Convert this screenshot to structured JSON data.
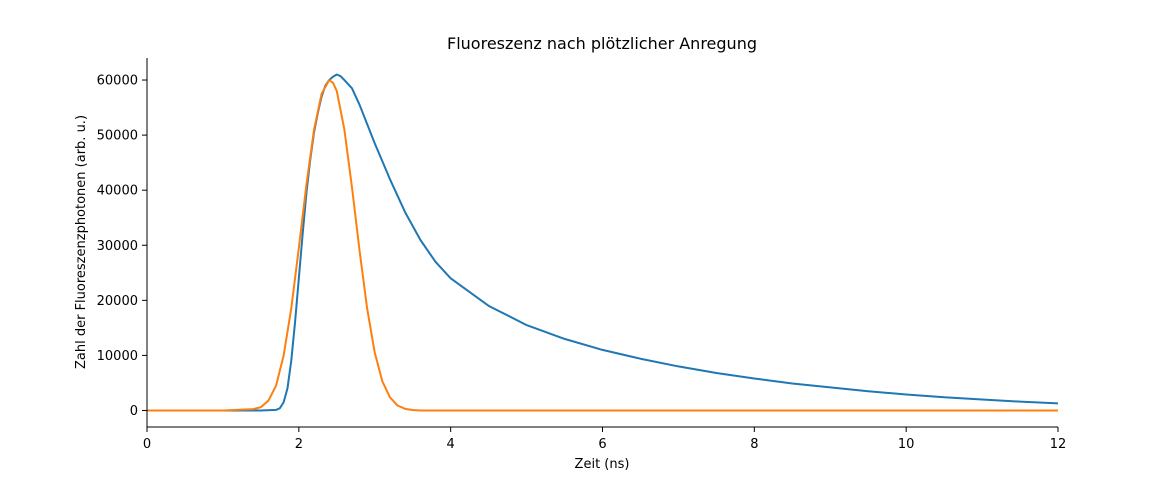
{
  "chart_data": {
    "type": "line",
    "title": "Fluoreszenz nach plötzlicher Anregung",
    "xlabel": "Zeit (ns)",
    "ylabel": "Zahl der Fluoreszenzphotonen (arb. u.)",
    "xlim": [
      0,
      12
    ],
    "ylim": [
      -3000,
      64000
    ],
    "xticks": [
      0,
      2,
      4,
      6,
      8,
      10,
      12
    ],
    "yticks": [
      0,
      10000,
      20000,
      30000,
      40000,
      50000,
      60000
    ],
    "grid": false,
    "legend": "none",
    "series": [
      {
        "color": "#1f77b4",
        "x": [
          0,
          0.5,
          1.0,
          1.5,
          1.7,
          1.75,
          1.8,
          1.85,
          1.9,
          1.95,
          2.0,
          2.05,
          2.1,
          2.15,
          2.2,
          2.25,
          2.3,
          2.35,
          2.4,
          2.45,
          2.5,
          2.55,
          2.6,
          2.7,
          2.8,
          2.9,
          3.0,
          3.2,
          3.4,
          3.6,
          3.8,
          4.0,
          4.5,
          5.0,
          5.5,
          6.0,
          6.5,
          7.0,
          7.5,
          8.0,
          8.5,
          9.0,
          9.5,
          10.0,
          10.5,
          11.0,
          11.5,
          12.0
        ],
        "y": [
          0,
          0,
          0,
          0,
          100,
          400,
          1500,
          4000,
          9000,
          16000,
          24000,
          32000,
          39500,
          45500,
          50500,
          54000,
          57000,
          59000,
          60000,
          60600,
          61000,
          60700,
          60000,
          58500,
          55500,
          52000,
          48500,
          42000,
          36000,
          31000,
          27000,
          24000,
          19000,
          15500,
          13000,
          11000,
          9400,
          8000,
          6800,
          5800,
          4900,
          4200,
          3500,
          2900,
          2400,
          2000,
          1600,
          1300
        ]
      },
      {
        "color": "#ff7f0e",
        "x": [
          0,
          1.0,
          1.4,
          1.5,
          1.6,
          1.7,
          1.8,
          1.9,
          2.0,
          2.1,
          2.2,
          2.3,
          2.4,
          2.45,
          2.5,
          2.6,
          2.7,
          2.8,
          2.9,
          3.0,
          3.1,
          3.2,
          3.3,
          3.4,
          3.5,
          3.6,
          4.0,
          5.0,
          6.0,
          8.0,
          10.0,
          12.0
        ],
        "y": [
          0,
          0,
          250,
          600,
          1800,
          4500,
          10000,
          18500,
          29500,
          41000,
          51000,
          57500,
          60000,
          59500,
          58000,
          51000,
          40500,
          29000,
          18500,
          10500,
          5300,
          2400,
          900,
          300,
          80,
          0,
          0,
          0,
          0,
          0,
          0,
          0
        ]
      }
    ]
  }
}
